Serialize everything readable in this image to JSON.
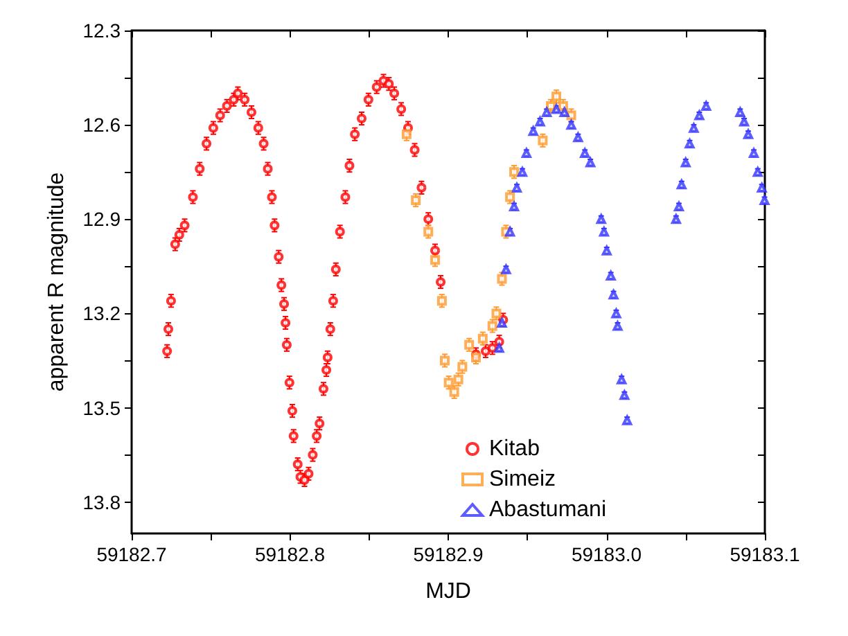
{
  "chart_data": {
    "type": "scatter",
    "xlabel": "MJD",
    "ylabel": "apparent R magnitude",
    "xlim": [
      59182.7,
      59183.1
    ],
    "xticks": [
      59182.7,
      {
        "value": 59182.75,
        "label": null
      },
      59182.8,
      {
        "value": 59182.85,
        "label": null
      },
      59182.9,
      {
        "value": 59182.95,
        "label": null
      },
      {
        "value": 59183,
        "label": "59183.0"
      },
      {
        "value": 59183.05,
        "label": null
      },
      59183.1
    ],
    "ylim": [
      13.9,
      12.3
    ],
    "yticks": [
      12.3,
      {
        "value": 12.45,
        "label": null
      },
      12.6,
      {
        "value": 12.75,
        "label": null
      },
      12.9,
      {
        "value": 13.05,
        "label": null
      },
      13.2,
      {
        "value": 13.35,
        "label": null
      },
      13.5,
      {
        "value": 13.65,
        "label": null
      },
      13.8
    ],
    "legend": "bottom right",
    "grid": false,
    "series": [
      {
        "name": "Kitab",
        "color": "#ff0000",
        "marker": "circle",
        "x": [
          59182.7224,
          59182.7232,
          59182.7249,
          59182.7275,
          59182.7301,
          59182.7335,
          59182.7387,
          59182.743,
          59182.7473,
          59182.7516,
          59182.7559,
          59182.7602,
          59182.7645,
          59182.7671,
          59182.7714,
          59182.7757,
          59182.78,
          59182.7834,
          59182.786,
          59182.7886,
          59182.7903,
          59182.7929,
          59182.7946,
          59182.7963,
          59182.7972,
          59182.798,
          59182.7997,
          59182.8015,
          59182.8023,
          59182.8049,
          59182.8066,
          59182.8092,
          59182.8118,
          59182.8144,
          59182.8169,
          59182.8187,
          59182.8212,
          59182.823,
          59182.8238,
          59182.8255,
          59182.8273,
          59182.829,
          59182.8316,
          59182.835,
          59182.8376,
          59182.841,
          59182.8453,
          59182.8496,
          59182.8548,
          59182.8591,
          59182.8625,
          59182.8659,
          59182.8703,
          59182.8746,
          59182.8788,
          59182.8831,
          59182.8874,
          59182.8917,
          59182.8952,
          59182.9175,
          59182.9236,
          59182.9279,
          59182.9322,
          59182.9347
        ],
        "values": [
          13.32,
          13.25,
          13.16,
          12.98,
          12.95,
          12.92,
          12.83,
          12.74,
          12.66,
          12.61,
          12.57,
          12.54,
          12.52,
          12.5,
          12.52,
          12.56,
          12.61,
          12.66,
          12.74,
          12.83,
          12.92,
          13.02,
          13.11,
          13.17,
          13.23,
          13.3,
          13.42,
          13.51,
          13.59,
          13.68,
          13.72,
          13.73,
          13.71,
          13.65,
          13.59,
          13.55,
          13.44,
          13.38,
          13.34,
          13.25,
          13.16,
          13.06,
          12.94,
          12.83,
          12.73,
          12.63,
          12.58,
          12.52,
          12.48,
          12.46,
          12.47,
          12.5,
          12.55,
          12.61,
          12.68,
          12.8,
          12.9,
          13.0,
          13.1,
          13.33,
          13.32,
          13.31,
          13.29,
          13.22
        ],
        "errors": [
          0.02,
          0.02,
          0.02,
          0.02,
          0.02,
          0.02,
          0.02,
          0.02,
          0.02,
          0.02,
          0.02,
          0.02,
          0.02,
          0.02,
          0.02,
          0.02,
          0.02,
          0.02,
          0.02,
          0.02,
          0.02,
          0.02,
          0.02,
          0.02,
          0.02,
          0.02,
          0.02,
          0.02,
          0.02,
          0.02,
          0.02,
          0.02,
          0.02,
          0.02,
          0.02,
          0.02,
          0.02,
          0.02,
          0.02,
          0.02,
          0.02,
          0.02,
          0.02,
          0.02,
          0.02,
          0.02,
          0.02,
          0.02,
          0.02,
          0.02,
          0.02,
          0.02,
          0.02,
          0.02,
          0.02,
          0.02,
          0.02,
          0.02,
          0.02,
          0.02,
          0.02,
          0.02,
          0.02,
          0.02
        ]
      },
      {
        "name": "Simeiz",
        "color": "#ff9a2e",
        "marker": "square",
        "x": [
          59182.8737,
          59182.8795,
          59182.8874,
          59182.8917,
          59182.896,
          59182.8978,
          59182.9003,
          59182.9038,
          59182.9064,
          59182.9089,
          59182.9132,
          59182.9175,
          59182.9218,
          59182.9279,
          59182.9304,
          59182.9339,
          59182.9365,
          59182.939,
          59182.9416,
          59182.9597,
          59182.9648,
          59182.9683,
          59182.9726,
          59182.9777
        ],
        "values": [
          12.63,
          12.84,
          12.94,
          13.03,
          13.16,
          13.35,
          13.42,
          13.45,
          13.41,
          13.37,
          13.3,
          13.34,
          13.28,
          13.24,
          13.2,
          13.09,
          12.94,
          12.83,
          12.75,
          12.65,
          12.54,
          12.51,
          12.54,
          12.57
        ],
        "errors": [
          0.02,
          0.02,
          0.02,
          0.02,
          0.02,
          0.02,
          0.02,
          0.02,
          0.02,
          0.02,
          0.02,
          0.02,
          0.02,
          0.02,
          0.02,
          0.02,
          0.02,
          0.02,
          0.02,
          0.02,
          0.02,
          0.02,
          0.02,
          0.02
        ]
      },
      {
        "name": "Abastumani",
        "color": "#3333ff",
        "marker": "triangle",
        "x": [
          59182.9322,
          59182.9339,
          59182.9365,
          59182.939,
          59182.9416,
          59182.9433,
          59182.9468,
          59182.9494,
          59182.9537,
          59182.958,
          59182.9622,
          59182.9683,
          59182.9734,
          59182.9777,
          59182.982,
          59182.9863,
          59182.9898,
          59182.9966,
          59182.9984,
          59183.0001,
          59183.0027,
          59183.0044,
          59183.0061,
          59183.007,
          59183.0095,
          59183.0113,
          59183.013,
          59183.0439,
          59183.0457,
          59183.0474,
          59183.05,
          59183.0525,
          59183.0551,
          59183.0586,
          59183.0629,
          59183.0844,
          59183.0869,
          59183.0895,
          59183.093,
          59183.0955,
          59183.0981,
          59183.0998
        ],
        "values": [
          13.31,
          13.23,
          13.06,
          12.94,
          12.86,
          12.8,
          12.75,
          12.69,
          12.62,
          12.59,
          12.56,
          12.55,
          12.56,
          12.6,
          12.64,
          12.69,
          12.72,
          12.9,
          12.94,
          13.0,
          13.08,
          13.14,
          13.2,
          13.24,
          13.41,
          13.46,
          13.54,
          12.9,
          12.86,
          12.79,
          12.72,
          12.66,
          12.61,
          12.57,
          12.54,
          12.56,
          12.59,
          12.63,
          12.69,
          12.75,
          12.8,
          12.84
        ],
        "errors": [
          0.01,
          0.01,
          0.01,
          0.01,
          0.01,
          0.01,
          0.01,
          0.01,
          0.01,
          0.01,
          0.01,
          0.01,
          0.01,
          0.01,
          0.01,
          0.01,
          0.01,
          0.01,
          0.01,
          0.01,
          0.01,
          0.01,
          0.01,
          0.01,
          0.01,
          0.01,
          0.01,
          0.01,
          0.01,
          0.01,
          0.01,
          0.01,
          0.01,
          0.01,
          0.01,
          0.01,
          0.01,
          0.01,
          0.01,
          0.01,
          0.01,
          0.01
        ]
      }
    ]
  }
}
